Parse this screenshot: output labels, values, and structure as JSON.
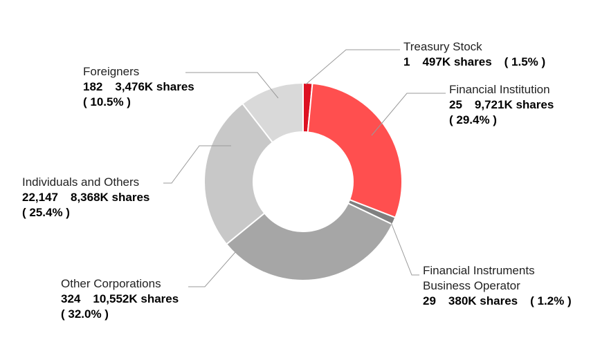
{
  "chart_data": {
    "type": "pie",
    "variant": "donut",
    "slices": [
      {
        "name": "Treasury Stock",
        "holders": "1",
        "shares": "497K shares",
        "pct_label": "( 1.5% )",
        "value": 1.5,
        "color": "#dd1122"
      },
      {
        "name": "Financial Institution",
        "holders": "25",
        "shares": "9,721K shares",
        "pct_label": "( 29.4% )",
        "value": 29.4,
        "color": "#ff4f4f"
      },
      {
        "name_line1": "Financial Instruments",
        "name_line2": "Business Operator",
        "holders": "29",
        "shares": "380K shares",
        "pct_label": "( 1.2% )",
        "value": 1.2,
        "color": "#7f7f7f"
      },
      {
        "name": "Other Corporations",
        "holders": "324",
        "shares": "10,552K shares",
        "pct_label": "( 32.0% )",
        "value": 32.0,
        "color": "#a6a6a6"
      },
      {
        "name": "Individuals and Others",
        "holders": "22,147",
        "shares": "8,368K shares",
        "pct_label": "( 25.4% )",
        "value": 25.4,
        "color": "#c8c8c8"
      },
      {
        "name": "Foreigners",
        "holders": "182",
        "shares": "3,476K shares",
        "pct_label": "( 10.5% )",
        "value": 10.5,
        "color": "#d9d9d9"
      }
    ]
  }
}
